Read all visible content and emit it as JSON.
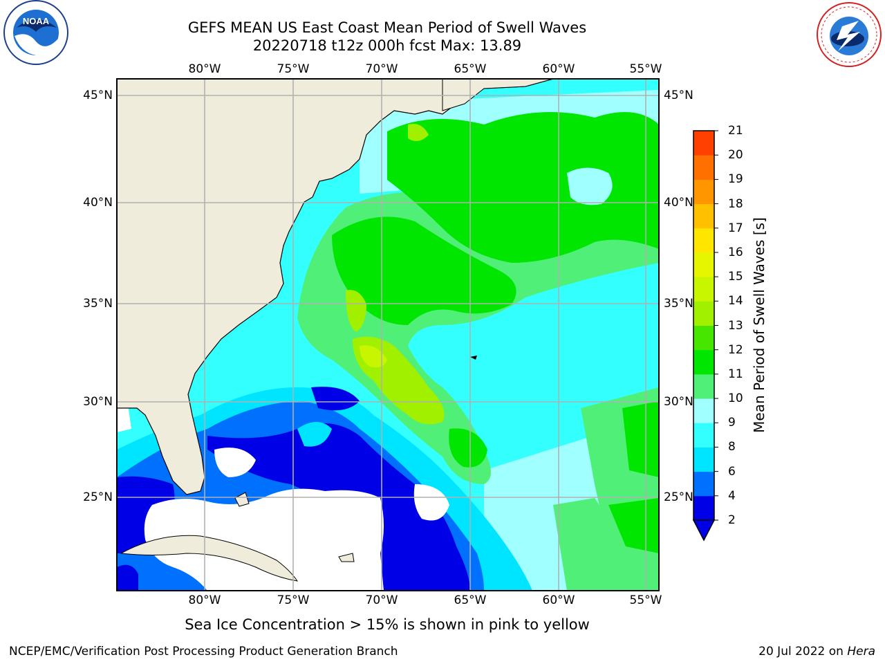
{
  "header": {
    "title_line1": "GEFS MEAN US East Coast Mean Period of Swell Waves",
    "title_line2": "20220718 t12z 000h fcst   Max: 13.89"
  },
  "logos": {
    "left": {
      "name": "noaa-logo",
      "text": "NOAA"
    },
    "right": {
      "name": "national-weather-service-logo",
      "text": "NATIONAL WEATHER SERVICE"
    }
  },
  "map": {
    "lon_labels": [
      "80°W",
      "75°W",
      "70°W",
      "65°W",
      "60°W",
      "55°W"
    ],
    "lat_labels": [
      "45°N",
      "40°N",
      "35°N",
      "30°N",
      "25°N"
    ],
    "gridlines": true,
    "colors": {
      "land": "#efecdc",
      "coast": "#000000",
      "grid": "#b0b0b0",
      "no_data": "#ffffff"
    }
  },
  "colorbar": {
    "label": "Mean Period of Swell Waves [s]",
    "ticks": [
      "2",
      "4",
      "6",
      "8",
      "9",
      "10",
      "11",
      "12",
      "13",
      "14",
      "15",
      "16",
      "17",
      "18",
      "19",
      "20",
      "21"
    ],
    "colors": [
      "#0000e6",
      "#0070ff",
      "#00e5ff",
      "#33ffff",
      "#a0ffff",
      "#50f078",
      "#00e600",
      "#46e600",
      "#a0f000",
      "#c8f500",
      "#e6f500",
      "#ffe600",
      "#ffc000",
      "#ff9600",
      "#ff7000",
      "#ff4000",
      "#ff0000"
    ],
    "extend": "min"
  },
  "footer": {
    "note": "Sea Ice Concentration > 15% is shown in pink to yellow",
    "credit": "NCEP/EMC/Verification Post Processing Product Generation Branch",
    "date_prefix": "20 Jul 2022 on ",
    "host": "Hera"
  }
}
